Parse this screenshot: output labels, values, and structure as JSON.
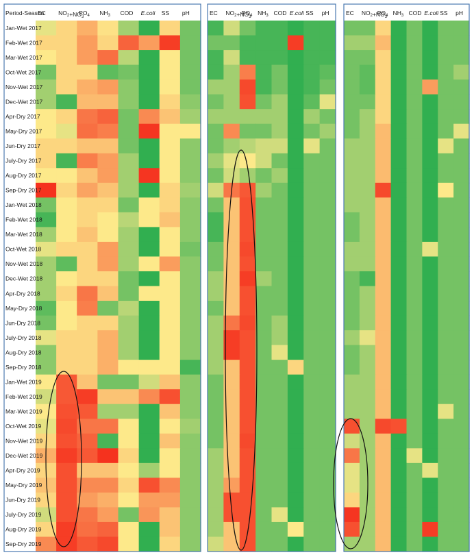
{
  "chart_data": {
    "type": "heatmap",
    "corner_label": "Period-Season",
    "columns": [
      {
        "key": "EC",
        "parts": [
          "EC"
        ]
      },
      {
        "key": "NO2+NO3",
        "parts": [
          "NO",
          {
            "sub": "2"
          },
          "+NO",
          {
            "sub": "3"
          }
        ]
      },
      {
        "key": "PO4",
        "parts": [
          "PO",
          {
            "sub": "4"
          }
        ]
      },
      {
        "key": "NH3",
        "parts": [
          "NH",
          {
            "sub": "3"
          }
        ]
      },
      {
        "key": "COD",
        "parts": [
          "COD"
        ]
      },
      {
        "key": "E.coli",
        "parts": [
          {
            "italic": "E.coli"
          }
        ]
      },
      {
        "key": "SS",
        "parts": [
          "SS"
        ]
      },
      {
        "key": "pH",
        "parts": [
          "pH"
        ]
      }
    ],
    "rows": [
      "Jan-Wet 2017",
      "Feb-Wet 2017",
      "Mar-Wet 2017",
      "Oct-Wet 2017",
      "Nov-Wet 2017",
      "Dec-Wet 2017",
      "Apr-Dry 2017",
      "May-Dry 2017",
      "Jun-Dry 2017",
      "July-Dry 2017",
      "Aug-Dry 2017",
      "Sep-Dry 2017",
      "Jan-Wet 2018",
      "Feb-Wet 2018",
      "Mar-Wet 2018",
      "Oct-Wet 2018",
      "Nov-Wet 2018",
      "Dec-Wet 2018",
      "Apr-Dry 2018",
      "May-Dry 2018",
      "Jun-Dry 2018",
      "July-Dry 2018",
      "Aug-Dry 2018",
      "Sep-Dry 2018",
      "Jan-Wet 2019",
      "Feb-Wet 2019",
      "Mar-Wet 2019",
      "Oct-Wet 2019",
      "Nov-Wet 2019",
      "Dec-Wet 2019",
      "Apr-Dry 2019",
      "May-Dry 2019",
      "Jun-Dry 2019",
      "July-Dry 2019",
      "Aug-Dry 2019",
      "Sep-Dry 2019"
    ],
    "color_scale": {
      "low": "#1aa84a",
      "mid": "#fde98a",
      "high": "#f52a1a",
      "range": [
        0,
        1
      ]
    },
    "panels": [
      {
        "name": "panel-1",
        "values": [
          [
            0.45,
            0.55,
            0.65,
            0.52,
            0.3,
            0.05,
            0.55,
            0.2
          ],
          [
            0.55,
            0.55,
            0.7,
            0.55,
            0.85,
            0.7,
            0.95,
            0.2
          ],
          [
            0.5,
            0.55,
            0.7,
            0.82,
            0.35,
            0.05,
            0.5,
            0.2
          ],
          [
            0.2,
            0.55,
            0.55,
            0.15,
            0.2,
            0.05,
            0.5,
            0.2
          ],
          [
            0.3,
            0.55,
            0.65,
            0.7,
            0.25,
            0.05,
            0.5,
            0.2
          ],
          [
            0.3,
            0.1,
            0.62,
            0.62,
            0.25,
            0.05,
            0.55,
            0.25
          ],
          [
            0.5,
            0.55,
            0.8,
            0.85,
            0.2,
            0.75,
            0.6,
            0.3
          ],
          [
            0.5,
            0.45,
            0.82,
            0.78,
            0.2,
            0.97,
            0.5,
            0.5
          ],
          [
            0.55,
            0.55,
            0.6,
            0.6,
            0.2,
            0.05,
            0.5,
            0.25
          ],
          [
            0.55,
            0.1,
            0.78,
            0.7,
            0.3,
            0.05,
            0.5,
            0.25
          ],
          [
            0.5,
            0.5,
            0.6,
            0.7,
            0.3,
            0.97,
            0.5,
            0.25
          ],
          [
            0.98,
            0.55,
            0.68,
            0.6,
            0.3,
            0.05,
            0.55,
            0.3
          ],
          [
            0.2,
            0.5,
            0.55,
            0.55,
            0.2,
            0.5,
            0.55,
            0.25
          ],
          [
            0.1,
            0.5,
            0.55,
            0.5,
            0.35,
            0.5,
            0.6,
            0.25
          ],
          [
            0.3,
            0.5,
            0.6,
            0.5,
            0.3,
            0.05,
            0.5,
            0.25
          ],
          [
            0.45,
            0.55,
            0.55,
            0.7,
            0.3,
            0.05,
            0.5,
            0.2
          ],
          [
            0.3,
            0.15,
            0.55,
            0.7,
            0.3,
            0.5,
            0.7,
            0.25
          ],
          [
            0.3,
            0.5,
            0.55,
            0.55,
            0.2,
            0.05,
            0.5,
            0.25
          ],
          [
            0.3,
            0.55,
            0.8,
            0.6,
            0.2,
            0.5,
            0.5,
            0.25
          ],
          [
            0.15,
            0.5,
            0.78,
            0.2,
            0.35,
            0.05,
            0.5,
            0.25
          ],
          [
            0.2,
            0.5,
            0.55,
            0.55,
            0.3,
            0.05,
            0.5,
            0.25
          ],
          [
            0.45,
            0.55,
            0.55,
            0.65,
            0.3,
            0.05,
            0.5,
            0.25
          ],
          [
            0.25,
            0.55,
            0.55,
            0.65,
            0.3,
            0.05,
            0.5,
            0.25
          ],
          [
            0.25,
            0.55,
            0.55,
            0.65,
            0.5,
            0.5,
            0.5,
            0.1
          ],
          [
            0.5,
            0.88,
            0.6,
            0.2,
            0.2,
            0.4,
            0.6,
            0.25
          ],
          [
            0.4,
            0.88,
            0.95,
            0.6,
            0.6,
            0.75,
            0.9,
            0.25
          ],
          [
            0.5,
            0.9,
            0.88,
            0.3,
            0.3,
            0.05,
            0.6,
            0.25
          ],
          [
            0.45,
            0.92,
            0.8,
            0.8,
            0.5,
            0.05,
            0.5,
            0.3
          ],
          [
            0.55,
            0.9,
            0.85,
            0.1,
            0.5,
            0.05,
            0.6,
            0.25
          ],
          [
            0.65,
            0.95,
            0.88,
            0.98,
            0.55,
            0.05,
            0.5,
            0.25
          ],
          [
            0.55,
            0.9,
            0.6,
            0.6,
            0.5,
            0.3,
            0.5,
            0.25
          ],
          [
            0.6,
            0.9,
            0.75,
            0.75,
            0.55,
            0.9,
            0.75,
            0.25
          ],
          [
            0.55,
            0.9,
            0.7,
            0.65,
            0.5,
            0.7,
            0.7,
            0.25
          ],
          [
            0.4,
            0.9,
            0.8,
            0.7,
            0.2,
            0.72,
            0.6,
            0.25
          ],
          [
            0.55,
            0.95,
            0.82,
            0.85,
            0.5,
            0.05,
            0.6,
            0.25
          ],
          [
            0.75,
            0.95,
            0.88,
            0.92,
            0.5,
            0.05,
            0.55,
            0.25
          ]
        ]
      },
      {
        "name": "panel-2",
        "values": [
          [
            0.1,
            0.4,
            0.2,
            0.1,
            0.1,
            0.05,
            0.1,
            0.1
          ],
          [
            0.2,
            0.2,
            0.1,
            0.1,
            0.1,
            0.95,
            0.1,
            0.1
          ],
          [
            0.1,
            0.4,
            0.1,
            0.1,
            0.1,
            0.05,
            0.1,
            0.1
          ],
          [
            0.1,
            0.3,
            0.78,
            0.1,
            0.2,
            0.05,
            0.1,
            0.15
          ],
          [
            0.3,
            0.3,
            0.92,
            0.1,
            0.2,
            0.05,
            0.1,
            0.2
          ],
          [
            0.2,
            0.3,
            0.9,
            0.2,
            0.3,
            0.05,
            0.15,
            0.45
          ],
          [
            0.3,
            0.3,
            0.3,
            0.3,
            0.3,
            0.05,
            0.3,
            0.2
          ],
          [
            0.2,
            0.75,
            0.2,
            0.2,
            0.3,
            0.05,
            0.2,
            0.3
          ],
          [
            0.2,
            0.3,
            0.35,
            0.4,
            0.4,
            0.05,
            0.45,
            0.2
          ],
          [
            0.3,
            0.45,
            0.5,
            0.4,
            0.2,
            0.05,
            0.2,
            0.2
          ],
          [
            0.2,
            0.4,
            0.3,
            0.2,
            0.3,
            0.05,
            0.2,
            0.2
          ],
          [
            0.4,
            0.8,
            0.88,
            0.3,
            0.2,
            0.05,
            0.2,
            0.2
          ],
          [
            0.2,
            0.6,
            0.9,
            0.2,
            0.2,
            0.05,
            0.2,
            0.2
          ],
          [
            0.1,
            0.6,
            0.9,
            0.2,
            0.2,
            0.05,
            0.2,
            0.2
          ],
          [
            0.1,
            0.6,
            0.9,
            0.2,
            0.2,
            0.05,
            0.2,
            0.2
          ],
          [
            0.2,
            0.6,
            0.92,
            0.2,
            0.2,
            0.05,
            0.2,
            0.2
          ],
          [
            0.2,
            0.6,
            0.9,
            0.2,
            0.2,
            0.05,
            0.2,
            0.2
          ],
          [
            0.3,
            0.6,
            0.95,
            0.3,
            0.2,
            0.05,
            0.2,
            0.2
          ],
          [
            0.3,
            0.6,
            0.9,
            0.2,
            0.2,
            0.05,
            0.2,
            0.2
          ],
          [
            0.2,
            0.6,
            0.9,
            0.2,
            0.2,
            0.05,
            0.2,
            0.2
          ],
          [
            0.3,
            0.8,
            0.92,
            0.2,
            0.3,
            0.05,
            0.2,
            0.2
          ],
          [
            0.3,
            0.95,
            0.9,
            0.2,
            0.3,
            0.05,
            0.2,
            0.2
          ],
          [
            0.3,
            0.95,
            0.9,
            0.2,
            0.45,
            0.05,
            0.2,
            0.2
          ],
          [
            0.3,
            0.6,
            0.9,
            0.2,
            0.2,
            0.55,
            0.2,
            0.2
          ],
          [
            0.2,
            0.6,
            0.9,
            0.2,
            0.2,
            0.05,
            0.2,
            0.2
          ],
          [
            0.2,
            0.6,
            0.9,
            0.2,
            0.2,
            0.05,
            0.2,
            0.2
          ],
          [
            0.2,
            0.6,
            0.9,
            0.2,
            0.2,
            0.05,
            0.2,
            0.2
          ],
          [
            0.2,
            0.6,
            0.9,
            0.2,
            0.2,
            0.05,
            0.2,
            0.2
          ],
          [
            0.2,
            0.6,
            0.92,
            0.2,
            0.2,
            0.05,
            0.2,
            0.2
          ],
          [
            0.3,
            0.6,
            0.9,
            0.2,
            0.2,
            0.05,
            0.2,
            0.2
          ],
          [
            0.3,
            0.6,
            0.9,
            0.2,
            0.2,
            0.05,
            0.2,
            0.2
          ],
          [
            0.3,
            0.7,
            0.9,
            0.2,
            0.2,
            0.05,
            0.2,
            0.2
          ],
          [
            0.3,
            0.9,
            0.9,
            0.2,
            0.2,
            0.05,
            0.2,
            0.2
          ],
          [
            0.3,
            0.9,
            0.9,
            0.2,
            0.45,
            0.05,
            0.2,
            0.2
          ],
          [
            0.3,
            0.6,
            0.9,
            0.2,
            0.2,
            0.5,
            0.2,
            0.2
          ],
          [
            0.4,
            0.6,
            0.9,
            0.2,
            0.2,
            0.05,
            0.2,
            0.2
          ]
        ]
      },
      {
        "name": "panel-3",
        "values": [
          [
            0.2,
            0.2,
            0.55,
            0.05,
            0.2,
            0.05,
            0.2,
            0.2
          ],
          [
            0.3,
            0.3,
            0.62,
            0.05,
            0.2,
            0.05,
            0.2,
            0.2
          ],
          [
            0.2,
            0.2,
            0.55,
            0.05,
            0.2,
            0.05,
            0.2,
            0.2
          ],
          [
            0.2,
            0.15,
            0.55,
            0.05,
            0.2,
            0.05,
            0.2,
            0.3
          ],
          [
            0.2,
            0.15,
            0.55,
            0.05,
            0.2,
            0.7,
            0.2,
            0.2
          ],
          [
            0.2,
            0.2,
            0.55,
            0.05,
            0.2,
            0.05,
            0.2,
            0.2
          ],
          [
            0.2,
            0.3,
            0.55,
            0.05,
            0.2,
            0.05,
            0.2,
            0.2
          ],
          [
            0.2,
            0.3,
            0.62,
            0.05,
            0.2,
            0.05,
            0.2,
            0.45
          ],
          [
            0.3,
            0.3,
            0.62,
            0.05,
            0.2,
            0.05,
            0.45,
            0.2
          ],
          [
            0.3,
            0.3,
            0.62,
            0.05,
            0.2,
            0.05,
            0.2,
            0.2
          ],
          [
            0.3,
            0.3,
            0.62,
            0.05,
            0.2,
            0.05,
            0.2,
            0.2
          ],
          [
            0.3,
            0.3,
            0.92,
            0.05,
            0.2,
            0.05,
            0.5,
            0.2
          ],
          [
            0.3,
            0.3,
            0.62,
            0.05,
            0.2,
            0.05,
            0.2,
            0.2
          ],
          [
            0.2,
            0.3,
            0.62,
            0.05,
            0.2,
            0.05,
            0.2,
            0.2
          ],
          [
            0.2,
            0.3,
            0.62,
            0.05,
            0.2,
            0.05,
            0.2,
            0.2
          ],
          [
            0.3,
            0.3,
            0.62,
            0.05,
            0.2,
            0.45,
            0.2,
            0.2
          ],
          [
            0.3,
            0.3,
            0.62,
            0.05,
            0.2,
            0.05,
            0.2,
            0.2
          ],
          [
            0.2,
            0.1,
            0.62,
            0.05,
            0.2,
            0.05,
            0.2,
            0.2
          ],
          [
            0.2,
            0.3,
            0.62,
            0.05,
            0.2,
            0.05,
            0.2,
            0.2
          ],
          [
            0.2,
            0.3,
            0.62,
            0.05,
            0.2,
            0.05,
            0.2,
            0.2
          ],
          [
            0.2,
            0.3,
            0.62,
            0.05,
            0.2,
            0.05,
            0.2,
            0.2
          ],
          [
            0.3,
            0.45,
            0.62,
            0.05,
            0.2,
            0.05,
            0.2,
            0.2
          ],
          [
            0.2,
            0.3,
            0.62,
            0.05,
            0.2,
            0.05,
            0.2,
            0.2
          ],
          [
            0.2,
            0.3,
            0.62,
            0.05,
            0.2,
            0.05,
            0.2,
            0.2
          ],
          [
            0.3,
            0.3,
            0.62,
            0.05,
            0.2,
            0.05,
            0.2,
            0.2
          ],
          [
            0.3,
            0.3,
            0.62,
            0.05,
            0.2,
            0.05,
            0.2,
            0.2
          ],
          [
            0.3,
            0.3,
            0.62,
            0.05,
            0.2,
            0.05,
            0.45,
            0.2
          ],
          [
            0.9,
            0.3,
            0.92,
            0.9,
            0.2,
            0.05,
            0.2,
            0.2
          ],
          [
            0.4,
            0.3,
            0.62,
            0.05,
            0.2,
            0.05,
            0.2,
            0.2
          ],
          [
            0.8,
            0.3,
            0.62,
            0.05,
            0.45,
            0.05,
            0.2,
            0.2
          ],
          [
            0.45,
            0.3,
            0.62,
            0.05,
            0.2,
            0.45,
            0.2,
            0.2
          ],
          [
            0.45,
            0.3,
            0.62,
            0.05,
            0.2,
            0.05,
            0.2,
            0.2
          ],
          [
            0.55,
            0.3,
            0.62,
            0.05,
            0.2,
            0.05,
            0.2,
            0.2
          ],
          [
            0.97,
            0.3,
            0.62,
            0.05,
            0.2,
            0.05,
            0.2,
            0.2
          ],
          [
            0.9,
            0.3,
            0.62,
            0.05,
            0.2,
            0.95,
            0.2,
            0.2
          ],
          [
            0.3,
            0.3,
            0.62,
            0.05,
            0.2,
            0.05,
            0.2,
            0.2
          ]
        ]
      }
    ]
  }
}
